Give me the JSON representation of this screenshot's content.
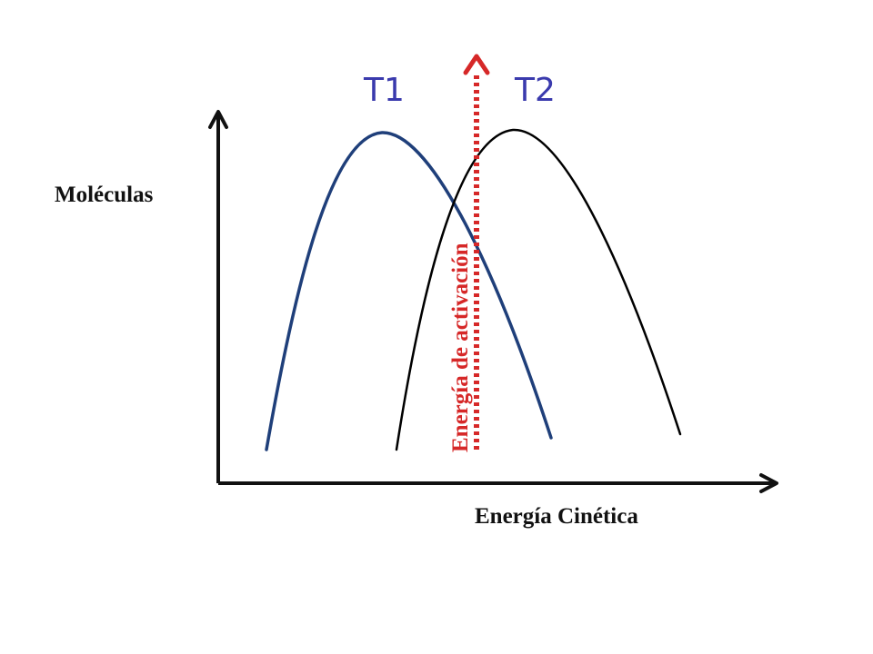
{
  "labels": {
    "y_axis": "Moléculas",
    "x_axis": "Energía Cinética",
    "curve_t1": "T1",
    "curve_t2": "T2",
    "activation": "Energía de activación"
  },
  "colors": {
    "axis": "#111111",
    "t1_curve": "#1f3f7a",
    "t1_label": "#3a3aad",
    "t2_curve": "#000000",
    "t2_label": "#3a3aad",
    "activation": "#d62828"
  }
}
